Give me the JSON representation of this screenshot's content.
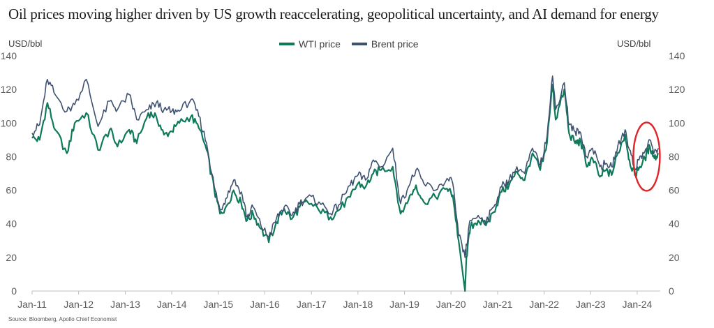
{
  "title": "Oil prices moving higher driven by US growth reaccelerating, geopolitical uncertainty, and AI demand for energy",
  "source": "Source: Bloomberg, Apollo Chief Economist",
  "colors": {
    "wti": "#0e7a5a",
    "brent": "#3f5170",
    "annotation": "#e0242a",
    "axis": "#bfbfbf"
  },
  "chart_data": {
    "type": "line",
    "title": "Oil prices moving higher driven by US growth reaccelerating, geopolitical uncertainty, and AI demand for energy",
    "ylabel_left": "USD/bbl",
    "ylabel_right": "USD/bbl",
    "ylim": [
      0,
      140
    ],
    "yticks": [
      0,
      20,
      40,
      60,
      80,
      100,
      120,
      140
    ],
    "xlim": [
      "2011-01-01",
      "2024-06-30"
    ],
    "xtick_labels": [
      "Jan-11",
      "Jan-12",
      "Jan-13",
      "Jan-14",
      "Jan-15",
      "Jan-16",
      "Jan-17",
      "Jan-18",
      "Jan-19",
      "Jan-20",
      "Jan-21",
      "Jan-22",
      "Jan-23",
      "Jan-24"
    ],
    "grid": false,
    "legend": "top-center",
    "x": [
      "2011-01-01",
      "2011-03-01",
      "2011-05-01",
      "2011-07-01",
      "2011-10-01",
      "2011-12-01",
      "2012-03-01",
      "2012-06-01",
      "2012-09-01",
      "2012-11-01",
      "2013-02-01",
      "2013-04-01",
      "2013-07-01",
      "2013-09-01",
      "2013-11-01",
      "2014-01-01",
      "2014-03-01",
      "2014-06-01",
      "2014-08-01",
      "2014-10-01",
      "2014-12-01",
      "2015-01-15",
      "2015-03-01",
      "2015-05-01",
      "2015-07-01",
      "2015-08-15",
      "2015-10-01",
      "2015-12-01",
      "2016-02-01",
      "2016-04-01",
      "2016-06-01",
      "2016-08-01",
      "2016-10-01",
      "2016-12-01",
      "2017-03-01",
      "2017-06-01",
      "2017-08-01",
      "2017-11-01",
      "2018-01-01",
      "2018-03-01",
      "2018-05-01",
      "2018-07-01",
      "2018-10-01",
      "2018-12-01",
      "2019-02-01",
      "2019-04-01",
      "2019-06-01",
      "2019-09-01",
      "2019-12-01",
      "2020-01-15",
      "2020-03-01",
      "2020-04-20",
      "2020-05-01",
      "2020-06-01",
      "2020-08-01",
      "2020-10-01",
      "2020-12-01",
      "2021-02-01",
      "2021-04-01",
      "2021-06-01",
      "2021-08-01",
      "2021-10-01",
      "2021-12-01",
      "2022-01-15",
      "2022-03-08",
      "2022-04-01",
      "2022-06-08",
      "2022-07-15",
      "2022-09-01",
      "2022-10-15",
      "2022-12-01",
      "2023-01-15",
      "2023-03-15",
      "2023-05-01",
      "2023-06-15",
      "2023-08-01",
      "2023-09-28",
      "2023-11-01",
      "2023-12-13",
      "2024-01-15",
      "2024-03-01",
      "2024-04-10",
      "2024-05-15",
      "2024-06-15"
    ],
    "series": [
      {
        "name": "WTI price",
        "values": [
          91,
          90,
          112,
          96,
          82,
          100,
          106,
          84,
          96,
          86,
          96,
          88,
          106,
          104,
          93,
          95,
          100,
          104,
          97,
          84,
          60,
          46,
          50,
          60,
          52,
          42,
          46,
          37,
          29,
          41,
          49,
          43,
          50,
          53,
          48,
          44,
          48,
          56,
          64,
          62,
          70,
          72,
          74,
          46,
          54,
          63,
          53,
          56,
          61,
          57,
          30,
          0,
          20,
          38,
          42,
          39,
          47,
          59,
          63,
          71,
          66,
          82,
          72,
          84,
          123,
          102,
          120,
          94,
          88,
          89,
          74,
          79,
          68,
          72,
          69,
          82,
          93,
          78,
          69,
          73,
          79,
          86,
          79,
          82
        ],
        "annotation": {
          "shape": "ellipse",
          "label": "",
          "x": "2024-03-15",
          "y": 80
        }
      },
      {
        "name": "Brent price",
        "values": [
          94,
          99,
          126,
          117,
          107,
          111,
          126,
          98,
          113,
          108,
          117,
          102,
          108,
          112,
          108,
          107,
          107,
          114,
          104,
          88,
          62,
          48,
          55,
          66,
          59,
          44,
          50,
          39,
          32,
          43,
          50,
          45,
          52,
          56,
          53,
          46,
          51,
          63,
          69,
          66,
          78,
          74,
          85,
          52,
          62,
          72,
          64,
          60,
          67,
          64,
          33,
          20,
          27,
          42,
          45,
          41,
          50,
          62,
          66,
          74,
          70,
          85,
          75,
          88,
          128,
          108,
          124,
          99,
          95,
          94,
          80,
          85,
          74,
          76,
          74,
          86,
          96,
          84,
          73,
          78,
          83,
          90,
          83,
          85
        ]
      }
    ]
  }
}
